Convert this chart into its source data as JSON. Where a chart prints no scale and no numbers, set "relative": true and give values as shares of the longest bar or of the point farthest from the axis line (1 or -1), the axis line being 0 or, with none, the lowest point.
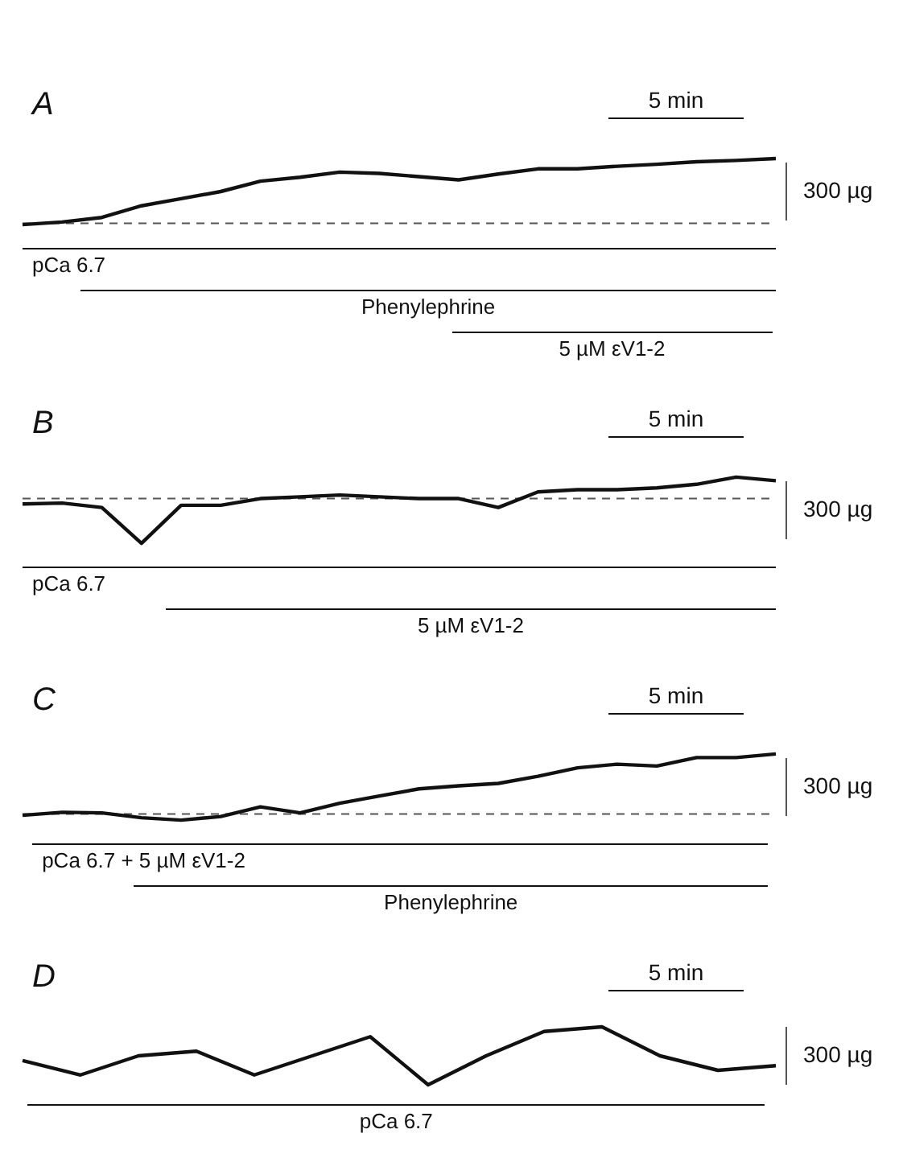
{
  "chart_data": [
    {
      "type": "line",
      "title": "A",
      "relative": true,
      "tick_labels": false,
      "categories": [
        null,
        null,
        null,
        null,
        null,
        null,
        null,
        null,
        null,
        null,
        null,
        null,
        null,
        null,
        null,
        null,
        null,
        null,
        null,
        null
      ],
      "series": [
        {
          "color": "#111111",
          "values": [
            -0.02,
            0.02,
            0.09,
            0.27,
            0.38,
            0.49,
            0.65,
            0.71,
            0.79,
            0.77,
            0.72,
            0.67,
            0.76,
            0.84,
            0.84,
            0.88,
            0.91,
            0.95,
            0.97,
            1.0
          ]
        }
      ],
      "ref_lines": [
        {
          "axis": "y",
          "value": 0,
          "line_style": "dashed",
          "color": "#555555"
        }
      ],
      "annotations": [
        "5 min",
        "300 µg",
        "pCa 6.7",
        "Phenylephrine",
        "5 µM  εV1-2"
      ]
    },
    {
      "type": "line",
      "title": "B",
      "relative": true,
      "tick_labels": false,
      "categories": [
        null,
        null,
        null,
        null,
        null,
        null,
        null,
        null,
        null,
        null,
        null,
        null,
        null,
        null,
        null,
        null,
        null,
        null,
        null,
        null
      ],
      "series": [
        {
          "color": "#111111",
          "values": [
            -0.12,
            -0.1,
            -0.2,
            -1.0,
            -0.15,
            -0.15,
            0.0,
            0.04,
            0.08,
            0.04,
            0.0,
            0.0,
            -0.2,
            0.15,
            0.2,
            0.2,
            0.24,
            0.32,
            0.48,
            0.4
          ]
        }
      ],
      "ref_lines": [
        {
          "axis": "y",
          "value": 0,
          "line_style": "dashed",
          "color": "#555555"
        }
      ],
      "annotations": [
        "5 min",
        "300 µg",
        "pCa 6.7",
        "5 µM  εV1-2"
      ]
    },
    {
      "type": "line",
      "title": "C",
      "relative": true,
      "tick_labels": false,
      "categories": [
        null,
        null,
        null,
        null,
        null,
        null,
        null,
        null,
        null,
        null,
        null,
        null,
        null,
        null,
        null,
        null,
        null,
        null,
        null,
        null
      ],
      "series": [
        {
          "color": "#111111",
          "values": [
            -0.02,
            0.03,
            0.02,
            -0.06,
            -0.1,
            -0.04,
            0.12,
            0.02,
            0.18,
            0.3,
            0.42,
            0.47,
            0.51,
            0.63,
            0.77,
            0.83,
            0.8,
            0.94,
            0.94,
            1.0
          ]
        }
      ],
      "ref_lines": [
        {
          "axis": "y",
          "value": 0,
          "line_style": "dashed",
          "color": "#555555"
        }
      ],
      "annotations": [
        "5 min",
        "300 µg",
        "pCa 6.7  + 5 µM  εV1-2",
        "Phenylephrine"
      ]
    },
    {
      "type": "line",
      "title": "D",
      "relative": true,
      "tick_labels": false,
      "categories": [
        null,
        null,
        null,
        null,
        null,
        null,
        null,
        null,
        null,
        null,
        null,
        null,
        null,
        null
      ],
      "series": [
        {
          "color": "#111111",
          "values": [
            0.42,
            0.17,
            0.5,
            0.58,
            0.17,
            0.5,
            0.83,
            0.0,
            0.5,
            0.92,
            1.0,
            0.5,
            0.25,
            0.33
          ]
        }
      ],
      "annotations": [
        "5 min",
        "300 µg",
        "pCa 6.7"
      ]
    }
  ]
}
